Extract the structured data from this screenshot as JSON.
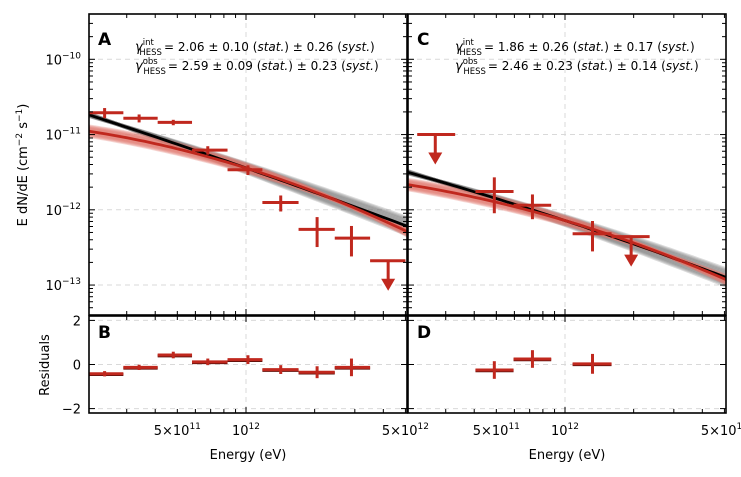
{
  "chart_data": {
    "type": "scatter",
    "layout": "2x2 grid: top spectra panels (A, C), bottom residual panels (B, D), shared x-axis per column",
    "x_axis": {
      "label": "Energy (eV)",
      "scale": "log",
      "range": [
        205000000000.0,
        5080000000000.0
      ],
      "tick_labels": [
        "5×10^11",
        "10^12",
        "5×10^12"
      ],
      "tick_values": [
        500000000000.0,
        1000000000000.0,
        5000000000000.0
      ]
    },
    "colors": {
      "data": "#c0281e",
      "model_observed": "#c0281e",
      "model_intrinsic": "#000000",
      "band_observed": "#e07a70",
      "band_intrinsic": "#707070",
      "grid": "#d9d9d9"
    },
    "panels": [
      {
        "id": "A",
        "kind": "spectrum",
        "ylabel": "E dN/dE (cm^-2 s^-1)",
        "yscale": "log",
        "ylim": [
          4e-14,
          4e-10
        ],
        "y_tick_labels": [
          "10^-10",
          "10^-11",
          "10^-12",
          "10^-13"
        ],
        "y_tick_values": [
          1e-10,
          1e-11,
          1e-12,
          1e-13
        ],
        "annotation": [
          {
            "symbol": "γ",
            "sup": "int",
            "sub": "HESS",
            "text": "= 2.06 ± 0.10 (stat.) ± 0.26 (syst.)"
          },
          {
            "symbol": "γ",
            "sup": "obs",
            "sub": "HESS",
            "text": "= 2.59 ± 0.09 (stat.) ± 0.23 (syst.)"
          }
        ],
        "models": {
          "intrinsic": {
            "amplitude_at_1TeV": 3.6e-12,
            "index_edn_de": -1.06,
            "range": [
              205000000000.0,
              5080000000000.0
            ],
            "curvature": -0.05
          },
          "observed": {
            "amplitude_at_1TeV": 3.6e-12,
            "index_edn_de": -0.95,
            "range": [
              205000000000.0,
              5080000000000.0
            ],
            "curvature": -0.35
          }
        },
        "points": [
          {
            "e": 240000000000.0,
            "e_lo": 205000000000.0,
            "e_hi": 290000000000.0,
            "flux": 1.95e-11,
            "err_lo": 3e-12,
            "err_hi": 3e-12,
            "ul": false
          },
          {
            "e": 340000000000.0,
            "e_lo": 290000000000.0,
            "e_hi": 410000000000.0,
            "flux": 1.65e-11,
            "err_lo": 2e-12,
            "err_hi": 2e-12,
            "ul": false
          },
          {
            "e": 480000000000.0,
            "e_lo": 410000000000.0,
            "e_hi": 580000000000.0,
            "flux": 1.45e-11,
            "err_lo": 1.2e-12,
            "err_hi": 1.2e-12,
            "ul": false
          },
          {
            "e": 680000000000.0,
            "e_lo": 580000000000.0,
            "e_hi": 830000000000.0,
            "flux": 6.2e-12,
            "err_lo": 8e-13,
            "err_hi": 8e-13,
            "ul": false
          },
          {
            "e": 1020000000000.0,
            "e_lo": 830000000000.0,
            "e_hi": 1180000000000.0,
            "flux": 3.4e-12,
            "err_lo": 5e-13,
            "err_hi": 5e-13,
            "ul": false
          },
          {
            "e": 1420000000000.0,
            "e_lo": 1180000000000.0,
            "e_hi": 1700000000000.0,
            "flux": 1.25e-12,
            "err_lo": 3e-13,
            "err_hi": 3e-13,
            "ul": false
          },
          {
            "e": 2050000000000.0,
            "e_lo": 1700000000000.0,
            "e_hi": 2450000000000.0,
            "flux": 5.5e-13,
            "err_lo": 2.3e-13,
            "err_hi": 2.5e-13,
            "ul": false
          },
          {
            "e": 2900000000000.0,
            "e_lo": 2450000000000.0,
            "e_hi": 3500000000000.0,
            "flux": 4.2e-13,
            "err_lo": 1.8e-13,
            "err_hi": 1.9e-13,
            "ul": false
          },
          {
            "e": 4200000000000.0,
            "e_lo": 3500000000000.0,
            "e_hi": 5000000000000.0,
            "flux": 2.1e-13,
            "err_lo": 0,
            "err_hi": 0,
            "ul": true
          }
        ]
      },
      {
        "id": "B",
        "kind": "residuals",
        "ylabel": "Residuals",
        "ylim": [
          -2.2,
          2.2
        ],
        "y_tick_labels": [
          "2",
          "0",
          "−2"
        ],
        "y_tick_values": [
          2,
          0,
          -2
        ],
        "points": [
          {
            "e": 240000000000.0,
            "e_lo": 205000000000.0,
            "e_hi": 290000000000.0,
            "r": -0.42,
            "err": 0.12
          },
          {
            "e": 340000000000.0,
            "e_lo": 290000000000.0,
            "e_hi": 410000000000.0,
            "r": -0.13,
            "err": 0.12
          },
          {
            "e": 480000000000.0,
            "e_lo": 410000000000.0,
            "e_hi": 580000000000.0,
            "r": 0.43,
            "err": 0.15
          },
          {
            "e": 680000000000.0,
            "e_lo": 580000000000.0,
            "e_hi": 830000000000.0,
            "r": 0.12,
            "err": 0.15
          },
          {
            "e": 1020000000000.0,
            "e_lo": 830000000000.0,
            "e_hi": 1180000000000.0,
            "r": 0.22,
            "err": 0.2
          },
          {
            "e": 1420000000000.0,
            "e_lo": 1180000000000.0,
            "e_hi": 1700000000000.0,
            "r": -0.23,
            "err": 0.2
          },
          {
            "e": 2050000000000.0,
            "e_lo": 1700000000000.0,
            "e_hi": 2450000000000.0,
            "r": -0.35,
            "err": 0.27
          },
          {
            "e": 2900000000000.0,
            "e_lo": 2450000000000.0,
            "e_hi": 3500000000000.0,
            "r": -0.13,
            "err": 0.4
          }
        ]
      },
      {
        "id": "C",
        "kind": "spectrum",
        "yscale": "log",
        "ylim": [
          4e-14,
          4e-10
        ],
        "annotation": [
          {
            "symbol": "γ",
            "sup": "int",
            "sub": "HESS",
            "text": "= 1.86 ± 0.26 (stat.) ± 0.17 (syst.)"
          },
          {
            "symbol": "γ",
            "sup": "obs",
            "sub": "HESS",
            "text": "= 2.46 ± 0.23 (stat.) ± 0.14 (syst.)"
          }
        ],
        "models": {
          "intrinsic": {
            "amplitude_at_1TeV": 7.2e-13,
            "index_edn_de": -1.0,
            "range": [
              205000000000.0,
              5080000000000.0
            ],
            "curvature": -0.1
          },
          "observed": {
            "amplitude_at_1TeV": 7.2e-13,
            "index_edn_de": -0.9,
            "range": [
              205000000000.0,
              5080000000000.0
            ],
            "curvature": -0.3
          }
        },
        "points": [
          {
            "e": 270000000000.0,
            "e_lo": 225000000000.0,
            "e_hi": 330000000000.0,
            "flux": 1e-11,
            "err_lo": 0,
            "err_hi": 0,
            "ul": true
          },
          {
            "e": 490000000000.0,
            "e_lo": 405000000000.0,
            "e_hi": 595000000000.0,
            "flux": 1.75e-12,
            "err_lo": 8.5e-13,
            "err_hi": 9.5e-13,
            "ul": false
          },
          {
            "e": 720000000000.0,
            "e_lo": 595000000000.0,
            "e_hi": 870000000000.0,
            "flux": 1.15e-12,
            "err_lo": 4e-13,
            "err_hi": 4.5e-13,
            "ul": false
          },
          {
            "e": 1320000000000.0,
            "e_lo": 1080000000000.0,
            "e_hi": 1600000000000.0,
            "flux": 4.8e-13,
            "err_lo": 2e-13,
            "err_hi": 2.3e-13,
            "ul": false
          },
          {
            "e": 1950000000000.0,
            "e_lo": 1600000000000.0,
            "e_hi": 2350000000000.0,
            "flux": 4.4e-13,
            "err_lo": 0,
            "err_hi": 0,
            "ul": true
          }
        ]
      },
      {
        "id": "D",
        "kind": "residuals",
        "ylim": [
          -2.2,
          2.2
        ],
        "points": [
          {
            "e": 490000000000.0,
            "e_lo": 405000000000.0,
            "e_hi": 595000000000.0,
            "r": -0.25,
            "err": 0.4
          },
          {
            "e": 720000000000.0,
            "e_lo": 595000000000.0,
            "e_hi": 870000000000.0,
            "r": 0.25,
            "err": 0.4
          },
          {
            "e": 1320000000000.0,
            "e_lo": 1080000000000.0,
            "e_hi": 1600000000000.0,
            "r": 0.03,
            "err": 0.45
          }
        ]
      }
    ]
  }
}
